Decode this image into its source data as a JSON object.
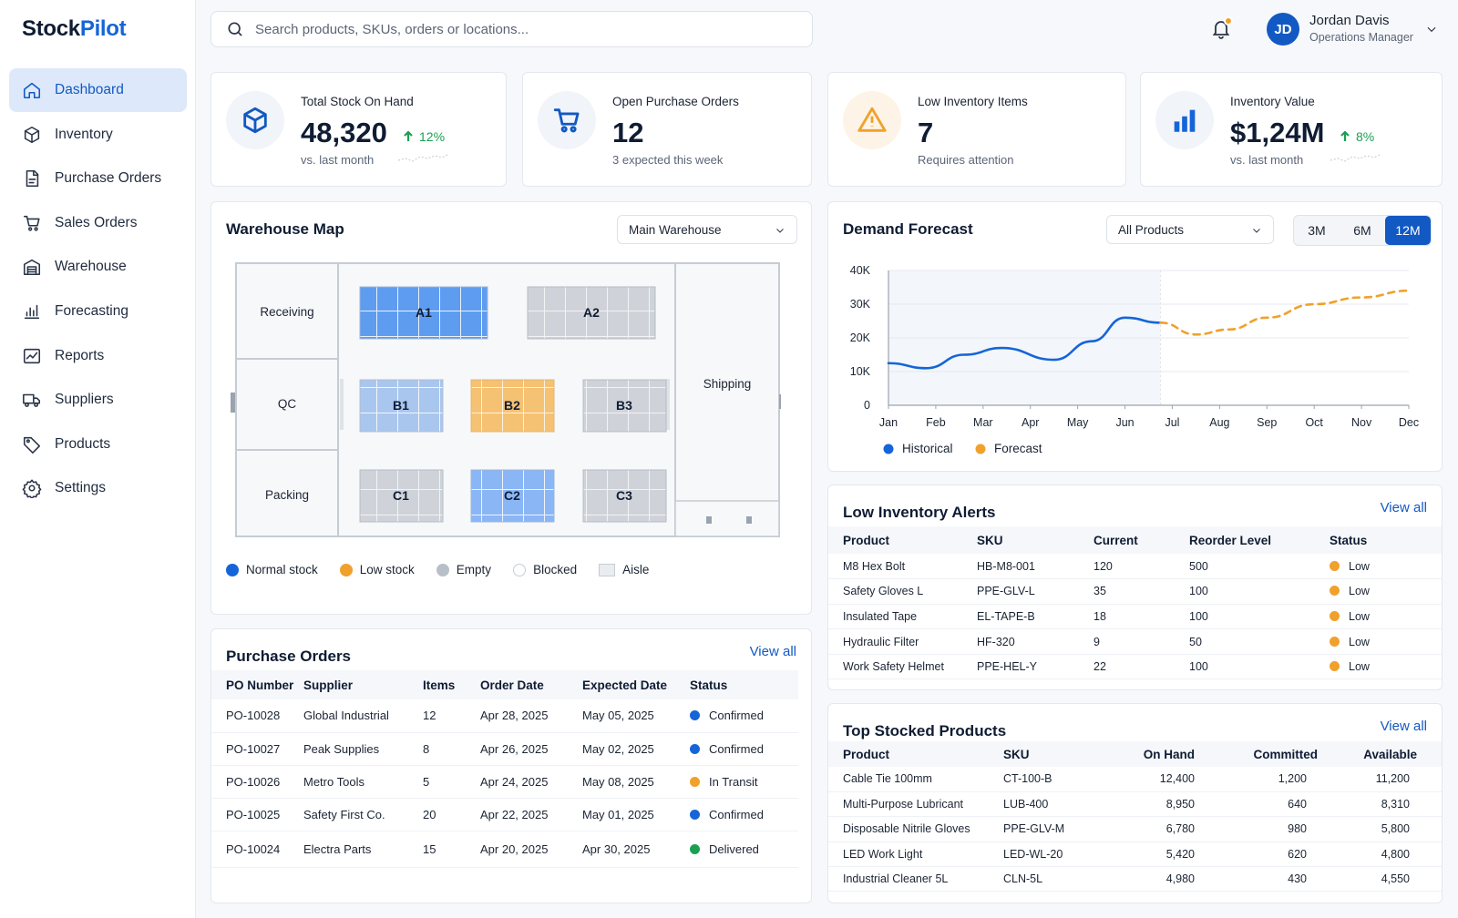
{
  "app": {
    "name_part1": "Stock",
    "name_part2": "Pilot"
  },
  "sidebar": {
    "items": [
      {
        "label": "Dashboard",
        "icon": "home-icon",
        "active": true
      },
      {
        "label": "Inventory",
        "icon": "box-icon"
      },
      {
        "label": "Purchase Orders",
        "icon": "document-icon"
      },
      {
        "label": "Sales Orders",
        "icon": "cart-icon"
      },
      {
        "label": "Warehouse",
        "icon": "warehouse-icon"
      },
      {
        "label": "Forecasting",
        "icon": "bar-chart-icon"
      },
      {
        "label": "Reports",
        "icon": "line-chart-icon"
      },
      {
        "label": "Suppliers",
        "icon": "truck-icon"
      },
      {
        "label": "Products",
        "icon": "tag-icon"
      },
      {
        "label": "Settings",
        "icon": "gear-icon"
      }
    ]
  },
  "topbar": {
    "search_placeholder": "Search products, SKUs, orders or locations...",
    "user": {
      "initials": "JD",
      "name": "Jordan Davis",
      "role": "Operations Manager"
    }
  },
  "kpis": [
    {
      "label": "Total Stock On Hand",
      "value": "48,320",
      "delta": "12%",
      "sub": "vs. last month",
      "icon": "cube-icon"
    },
    {
      "label": "Open Purchase Orders",
      "value": "12",
      "sub": "3 expected this week",
      "icon": "cart-icon"
    },
    {
      "label": "Low Inventory Items",
      "value": "7",
      "sub": "Requires attention",
      "icon": "warning-icon"
    },
    {
      "label": "Inventory Value",
      "value": "$1,24M",
      "delta": "8%",
      "sub": "vs. last month",
      "icon": "bar-chart-icon"
    }
  ],
  "warehouse": {
    "title": "Warehouse Map",
    "selected_warehouse": "Main Warehouse",
    "zones": {
      "receiving": "Receiving",
      "qc": "QC",
      "packing": "Packing",
      "shipping": "Shipping"
    },
    "racks": [
      {
        "id": "A1",
        "status": "normal"
      },
      {
        "id": "A2",
        "status": "empty"
      },
      {
        "id": "B1",
        "status": "mixed"
      },
      {
        "id": "B2",
        "status": "low"
      },
      {
        "id": "B3",
        "status": "empty"
      },
      {
        "id": "C1",
        "status": "empty"
      },
      {
        "id": "C2",
        "status": "normal-light"
      },
      {
        "id": "C3",
        "status": "empty"
      }
    ],
    "legend": [
      {
        "label": "Normal stock",
        "color": "#1565d8"
      },
      {
        "label": "Low stock",
        "color": "#f0a12b"
      },
      {
        "label": "Empty",
        "color": "#b9bfc8"
      },
      {
        "label": "Blocked",
        "color": "#ffffff"
      },
      {
        "label": "Aisle",
        "color": "#e9ecf0"
      }
    ]
  },
  "forecast": {
    "title": "Demand Forecast",
    "filter": "All Products",
    "ranges": [
      "3M",
      "6M",
      "12M"
    ],
    "active_range": "12M"
  },
  "chart_data": {
    "type": "line",
    "title": "Demand Forecast",
    "x": [
      "Jan",
      "Feb",
      "Mar",
      "Apr",
      "May",
      "Jun",
      "Jul",
      "Aug",
      "Sep",
      "Oct",
      "Nov",
      "Dec"
    ],
    "y_ticks": [
      "0",
      "10K",
      "20K",
      "30K",
      "40K"
    ],
    "ylim": [
      0,
      40000
    ],
    "series": [
      {
        "name": "Historical",
        "color": "#1565d8",
        "style": "solid",
        "points": [
          [
            0,
            12500
          ],
          [
            0.8,
            11000
          ],
          [
            1.6,
            15000
          ],
          [
            2.4,
            17000
          ],
          [
            3.5,
            13500
          ],
          [
            4.3,
            19000
          ],
          [
            5.0,
            26000
          ],
          [
            5.75,
            24500
          ]
        ]
      },
      {
        "name": "Forecast",
        "color": "#f0a12b",
        "style": "dashed",
        "points": [
          [
            5.75,
            24500
          ],
          [
            6.5,
            21000
          ],
          [
            7.2,
            22500
          ],
          [
            8.0,
            26000
          ],
          [
            9.0,
            30000
          ],
          [
            10.0,
            32000
          ],
          [
            11.0,
            34000
          ]
        ]
      }
    ],
    "forecast_start_x": 5.75,
    "grid": true,
    "legend_position": "bottom-left"
  },
  "low_inventory": {
    "title": "Low Inventory Alerts",
    "view_all": "View all",
    "columns": [
      "Product",
      "SKU",
      "Current",
      "Reorder Level",
      "Status"
    ],
    "rows": [
      [
        "M8 Hex Bolt",
        "HB-M8-001",
        "120",
        "500",
        "Low"
      ],
      [
        "Safety Gloves L",
        "PPE-GLV-L",
        "35",
        "100",
        "Low"
      ],
      [
        "Insulated Tape",
        "EL-TAPE-B",
        "18",
        "100",
        "Low"
      ],
      [
        "Hydraulic Filter",
        "HF-320",
        "9",
        "50",
        "Low"
      ],
      [
        "Work Safety Helmet",
        "PPE-HEL-Y",
        "22",
        "100",
        "Low"
      ]
    ]
  },
  "purchase_orders": {
    "title": "Purchase Orders",
    "view_all": "View all",
    "columns": [
      "PO Number",
      "Supplier",
      "Items",
      "Order Date",
      "Expected Date",
      "Status"
    ],
    "rows": [
      {
        "cells": [
          "PO-10028",
          "Global Industrial",
          "12",
          "Apr 28, 2025",
          "May 05, 2025",
          "Confirmed"
        ],
        "status_color": "#1565d8"
      },
      {
        "cells": [
          "PO-10027",
          "Peak Supplies",
          "8",
          "Apr 26, 2025",
          "May 02, 2025",
          "Confirmed"
        ],
        "status_color": "#1565d8"
      },
      {
        "cells": [
          "PO-10026",
          "Metro Tools",
          "5",
          "Apr 24, 2025",
          "May 08, 2025",
          "In Transit"
        ],
        "status_color": "#f0a12b"
      },
      {
        "cells": [
          "PO-10025",
          "Safety First Co.",
          "20",
          "Apr 22, 2025",
          "May 01, 2025",
          "Confirmed"
        ],
        "status_color": "#1565d8"
      },
      {
        "cells": [
          "PO-10024",
          "Electra Parts",
          "15",
          "Apr 20, 2025",
          "Apr 30, 2025",
          "Delivered"
        ],
        "status_color": "#1aa053"
      }
    ]
  },
  "top_stocked": {
    "title": "Top Stocked Products",
    "view_all": "View all",
    "columns": [
      "Product",
      "SKU",
      "On Hand",
      "Committed",
      "Available"
    ],
    "rows": [
      [
        "Cable Tie 100mm",
        "CT-100-B",
        "12,400",
        "1,200",
        "11,200"
      ],
      [
        "Multi-Purpose Lubricant",
        "LUB-400",
        "8,950",
        "640",
        "8,310"
      ],
      [
        "Disposable Nitrile Gloves",
        "PPE-GLV-M",
        "6,780",
        "980",
        "5,800"
      ],
      [
        "LED Work Light",
        "LED-WL-20",
        "5,420",
        "620",
        "4,800"
      ],
      [
        "Industrial Cleaner 5L",
        "CLN-5L",
        "4,980",
        "430",
        "4,550"
      ]
    ]
  },
  "colors": {
    "accent": "#1259c3",
    "normal": "#1565d8",
    "low": "#f0a12b",
    "empty": "#b9bfc8",
    "success": "#1aa053"
  }
}
